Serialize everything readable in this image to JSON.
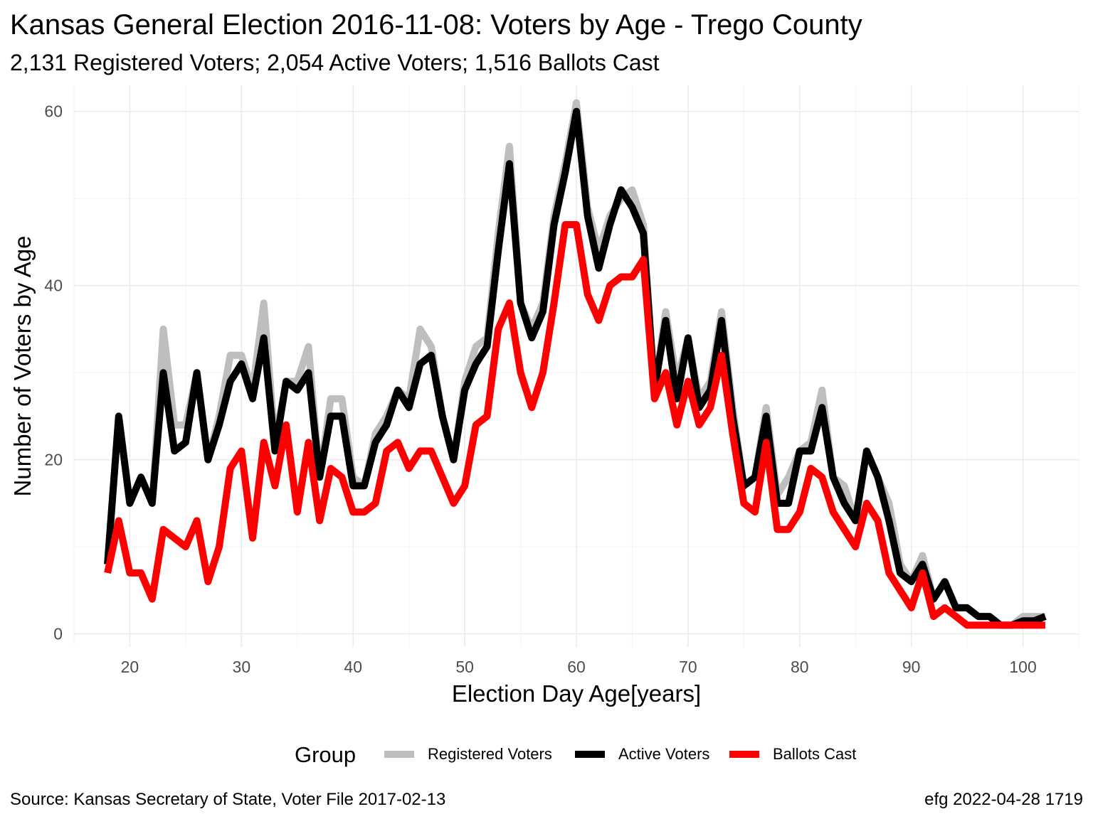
{
  "chart_data": {
    "type": "line",
    "title": "Kansas General Election 2016-11-08:  Voters by Age - Trego County",
    "subtitle": "2,131 Registered Voters; 2,054 Active Voters; 1,516 Ballots Cast",
    "xlabel": "Election Day Age[years]",
    "ylabel": "Number of Voters by Age",
    "xlim": [
      15,
      105
    ],
    "ylim": [
      -1.5,
      63
    ],
    "x_ticks": [
      20,
      30,
      40,
      50,
      60,
      70,
      80,
      90,
      100
    ],
    "y_ticks": [
      0,
      20,
      40,
      60
    ],
    "grid": true,
    "legend": {
      "title": "Group",
      "position": "bottom"
    },
    "caption_left": "Source:  Kansas Secretary of State, Voter File  2017-02-13",
    "caption_right": "efg 2022-04-28 1719",
    "x": [
      18,
      19,
      20,
      21,
      22,
      23,
      24,
      25,
      26,
      27,
      28,
      29,
      30,
      31,
      32,
      33,
      34,
      35,
      36,
      37,
      38,
      39,
      40,
      41,
      42,
      43,
      44,
      45,
      46,
      47,
      48,
      49,
      50,
      51,
      52,
      53,
      54,
      55,
      56,
      57,
      58,
      59,
      60,
      61,
      62,
      63,
      64,
      65,
      66,
      67,
      68,
      69,
      70,
      71,
      72,
      73,
      74,
      75,
      76,
      77,
      78,
      79,
      80,
      81,
      82,
      83,
      84,
      85,
      86,
      87,
      88,
      89,
      90,
      91,
      92,
      93,
      94,
      95,
      96,
      97,
      98,
      99,
      100,
      101,
      102
    ],
    "series": [
      {
        "name": "Registered Voters",
        "color": "#bebebe",
        "values": [
          8,
          25,
          15,
          18,
          15,
          35,
          24,
          24,
          30,
          20,
          25,
          32,
          32,
          28,
          38,
          22,
          29,
          29,
          33,
          18,
          27,
          27,
          18,
          17,
          23,
          25,
          28,
          27,
          35,
          33,
          25,
          20,
          29,
          33,
          34,
          46,
          56,
          38,
          35,
          38,
          48,
          54,
          61,
          49,
          44,
          48,
          50,
          51,
          47,
          28,
          37,
          29,
          34,
          27,
          29,
          37,
          26,
          17,
          18,
          26,
          16,
          18,
          21,
          22,
          28,
          18,
          17,
          13,
          21,
          18,
          15,
          8,
          6,
          9,
          4,
          6,
          3,
          3,
          2,
          2,
          1,
          1,
          2,
          2,
          2
        ]
      },
      {
        "name": "Active Voters",
        "color": "#000000",
        "values": [
          8,
          25,
          15,
          18,
          15,
          30,
          21,
          22,
          30,
          20,
          24,
          29,
          31,
          27,
          34,
          21,
          29,
          28,
          30,
          18,
          25,
          25,
          17,
          17,
          22,
          24,
          28,
          26,
          31,
          32,
          25,
          20,
          28,
          31,
          33,
          44,
          54,
          38,
          34,
          37,
          47,
          53,
          60,
          48,
          42,
          47,
          51,
          49,
          46,
          28,
          36,
          27,
          34,
          26,
          28,
          36,
          25,
          17,
          18,
          25,
          15,
          15,
          21,
          21,
          26,
          18,
          15,
          13,
          21,
          18,
          13,
          7,
          6,
          8,
          4,
          6,
          3,
          3,
          2,
          2,
          1,
          1,
          1.5,
          1.5,
          2
        ]
      },
      {
        "name": "Ballots Cast",
        "color": "#ff0000",
        "values": [
          7,
          13,
          7,
          7,
          4,
          12,
          11,
          10,
          13,
          6,
          10,
          19,
          21,
          11,
          22,
          17,
          24,
          14,
          22,
          13,
          19,
          18,
          14,
          14,
          15,
          21,
          22,
          19,
          21,
          21,
          18,
          15,
          17,
          24,
          25,
          35,
          38,
          30,
          26,
          30,
          38,
          47,
          47,
          39,
          36,
          40,
          41,
          41,
          43,
          27,
          30,
          24,
          29,
          24,
          26,
          32,
          23,
          15,
          14,
          22,
          12,
          12,
          14,
          19,
          18,
          14,
          12,
          10,
          15,
          13,
          7,
          5,
          3,
          7,
          2,
          3,
          2,
          1,
          1,
          1,
          1,
          1,
          1,
          1,
          1
        ]
      }
    ]
  }
}
